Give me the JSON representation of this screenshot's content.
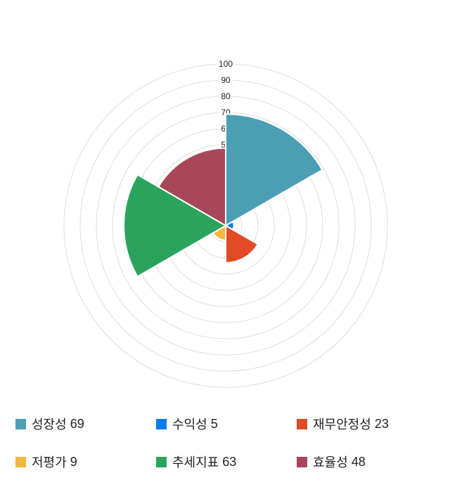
{
  "chart_data": {
    "type": "pie",
    "variant": "nightingale-rose-polar-area",
    "categories": [
      "성장성",
      "수익성",
      "재무안정성",
      "저평가",
      "추세지표",
      "효율성"
    ],
    "values": [
      69,
      5,
      23,
      9,
      63,
      48
    ],
    "colors": [
      "#4A9FB4",
      "#0A7CF2",
      "#E04B25",
      "#F5B63D",
      "#2AA45D",
      "#A8475A"
    ],
    "start_angle_deg": 0,
    "sector_angle_deg": 60,
    "direction": "clockwise-from-north",
    "axis_max": 100,
    "ring_step": 10,
    "radial_tick_labels": [
      "50",
      "60",
      "70",
      "80",
      "90",
      "100"
    ],
    "grid_on": true,
    "grid_color": "#DDDDDD",
    "tick_label_color": "#222222",
    "sector_border_color": "#FFFFFF",
    "background_color": "#FFFFFF",
    "legend_position": "bottom"
  },
  "legend": {
    "items": [
      {
        "label": "성장성",
        "value": "69",
        "color": "#4A9FB4"
      },
      {
        "label": "수익성",
        "value": "5",
        "color": "#0A7CF2"
      },
      {
        "label": "재무안정성",
        "value": "23",
        "color": "#E04B25"
      },
      {
        "label": "저평가",
        "value": "9",
        "color": "#F5B63D"
      },
      {
        "label": "추세지표",
        "value": "63",
        "color": "#2AA45D"
      },
      {
        "label": "효율성",
        "value": "48",
        "color": "#A8475A"
      }
    ],
    "text_color": "#222222"
  }
}
